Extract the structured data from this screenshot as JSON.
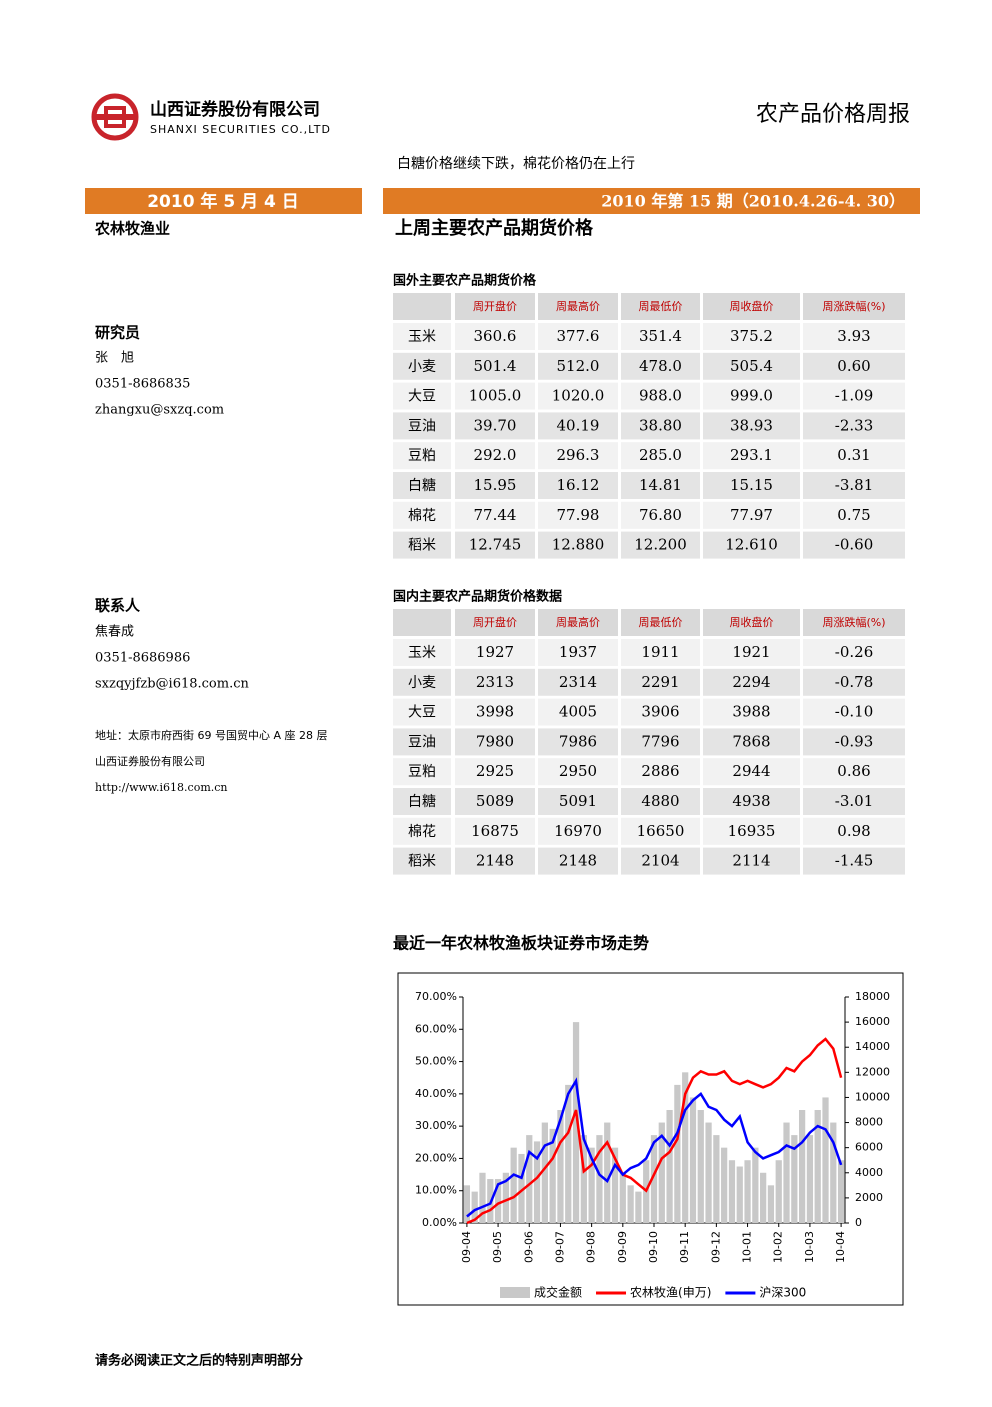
{
  "header": {
    "company_cn": "山西证券股份有限公司",
    "company_en": "SHANXI SECURITIES CO.,LTD",
    "report_title": "农产品价格周报",
    "headline": "白糖价格继续下跌，棉花价格仍在上行"
  },
  "date_bar": {
    "date": "2010 年 5 月 4 日",
    "issue": "2010 年第 15 期（2010.4.26-4. 30）"
  },
  "sidebar": {
    "sector": "农林牧渔业",
    "researcher_heading": "研究员",
    "researcher_name": "张　旭",
    "researcher_phone": "0351-8686835",
    "researcher_email": "zhangxu@sxzq.com",
    "contact_heading": "联系人",
    "contact_name": "焦春成",
    "contact_phone": "0351-8686986",
    "contact_email": "sxzqyjfzb@i618.com.cn",
    "address": "地址：太原市府西街 69 号国贸中心 A 座 28 层",
    "company": "山西证券股份有限公司",
    "website": "http://www.i618.com.cn"
  },
  "main": {
    "section_title": "上周主要农产品期货价格"
  },
  "tables": [
    {
      "title": "国外主要农产品期货价格",
      "columns": [
        "周开盘价",
        "周最高价",
        "周最低价",
        "周收盘价",
        "周涨跌幅(%)"
      ],
      "rows": [
        [
          "玉米",
          "360.6",
          "377.6",
          "351.4",
          "375.2",
          "3.93"
        ],
        [
          "小麦",
          "501.4",
          "512.0",
          "478.0",
          "505.4",
          "0.60"
        ],
        [
          "大豆",
          "1005.0",
          "1020.0",
          "988.0",
          "999.0",
          "-1.09"
        ],
        [
          "豆油",
          "39.70",
          "40.19",
          "38.80",
          "38.93",
          "-2.33"
        ],
        [
          "豆粕",
          "292.0",
          "296.3",
          "285.0",
          "293.1",
          "0.31"
        ],
        [
          "白糖",
          "15.95",
          "16.12",
          "14.81",
          "15.15",
          "-3.81"
        ],
        [
          "棉花",
          "77.44",
          "77.98",
          "76.80",
          "77.97",
          "0.75"
        ],
        [
          "稻米",
          "12.745",
          "12.880",
          "12.200",
          "12.610",
          "-0.60"
        ]
      ]
    },
    {
      "title": "国内主要农产品期货价格数据",
      "columns": [
        "周开盘价",
        "周最高价",
        "周最低价",
        "周收盘价",
        "周涨跌幅(%)"
      ],
      "rows": [
        [
          "玉米",
          "1927",
          "1937",
          "1911",
          "1921",
          "-0.26"
        ],
        [
          "小麦",
          "2313",
          "2314",
          "2291",
          "2294",
          "-0.78"
        ],
        [
          "大豆",
          "3998",
          "4005",
          "3906",
          "3988",
          "-0.10"
        ],
        [
          "豆油",
          "7980",
          "7986",
          "7796",
          "7868",
          "-0.93"
        ],
        [
          "豆粕",
          "2925",
          "2950",
          "2886",
          "2944",
          "0.86"
        ],
        [
          "白糖",
          "5089",
          "5091",
          "4880",
          "4938",
          "-3.01"
        ],
        [
          "棉花",
          "16875",
          "16970",
          "16650",
          "16935",
          "0.98"
        ],
        [
          "稻米",
          "2148",
          "2148",
          "2104",
          "2114",
          "-1.45"
        ]
      ]
    }
  ],
  "chart_data": {
    "type": "combo",
    "title": "最近一年农林牧渔板块证券市场走势",
    "categories": [
      "09-04",
      null,
      null,
      null,
      "09-05",
      null,
      null,
      null,
      "09-06",
      null,
      null,
      null,
      "09-07",
      null,
      null,
      null,
      "09-08",
      null,
      null,
      null,
      "09-09",
      null,
      null,
      null,
      "09-10",
      null,
      null,
      null,
      "09-11",
      null,
      null,
      null,
      "09-12",
      null,
      null,
      null,
      "10-01",
      null,
      null,
      null,
      "10-02",
      null,
      null,
      null,
      "10-03",
      null,
      null,
      null,
      "10-04"
    ],
    "series": [
      {
        "name": "成交金额",
        "type": "bar",
        "axis": "y2",
        "color": "#c8c8c8",
        "values": [
          3000,
          2500,
          4000,
          3500,
          3500,
          4000,
          6000,
          5500,
          7000,
          6500,
          8000,
          7500,
          9000,
          11000,
          16000,
          7000,
          6000,
          7000,
          8000,
          6000,
          4000,
          3000,
          2500,
          5000,
          7000,
          8000,
          9000,
          11000,
          12000,
          10000,
          9000,
          8000,
          7000,
          6000,
          5000,
          4500,
          5000,
          6000,
          4000,
          3000,
          5000,
          8000,
          7000,
          9000,
          7000,
          9000,
          10000,
          8000,
          5000
        ]
      },
      {
        "name": "农林牧渔(申万)",
        "type": "line",
        "color": "#ff0000",
        "values": [
          0,
          1,
          3,
          4,
          6,
          7,
          8,
          10,
          12,
          14,
          17,
          20,
          25,
          28,
          35,
          16,
          18,
          22,
          25,
          20,
          15,
          14,
          12,
          10,
          15,
          20,
          22,
          26,
          40,
          45,
          47,
          46,
          46,
          47,
          44,
          43,
          44,
          43,
          42,
          43,
          45,
          48,
          47,
          50,
          52,
          55,
          57,
          54,
          45
        ]
      },
      {
        "name": "沪深300",
        "type": "line",
        "color": "#0000ff",
        "values": [
          2,
          4,
          5,
          6,
          12,
          13,
          15,
          14,
          22,
          20,
          24,
          25,
          32,
          40,
          44,
          26,
          20,
          15,
          13,
          18,
          15,
          17,
          18,
          20,
          25,
          27,
          24,
          28,
          35,
          38,
          40,
          36,
          35,
          32,
          30,
          33,
          25,
          22,
          20,
          21,
          22,
          24,
          23,
          25,
          28,
          30,
          29,
          25,
          18
        ]
      }
    ],
    "ylim": [
      0,
      70
    ],
    "yticks": [
      {
        "value": 0,
        "label": "0.00%"
      },
      {
        "value": 10,
        "label": "10.00%"
      },
      {
        "value": 20,
        "label": "20.00%"
      },
      {
        "value": 30,
        "label": "30.00%"
      },
      {
        "value": 40,
        "label": "40.00%"
      },
      {
        "value": 50,
        "label": "50.00%"
      },
      {
        "value": 60,
        "label": "60.00%"
      },
      {
        "value": 70,
        "label": "70.00%"
      }
    ],
    "y2lim": [
      0,
      18000
    ],
    "y2ticks": [
      0,
      2000,
      4000,
      6000,
      8000,
      10000,
      12000,
      14000,
      16000,
      18000
    ],
    "grid": false
  },
  "footer": "请务必阅读正文之后的特别声明部分"
}
